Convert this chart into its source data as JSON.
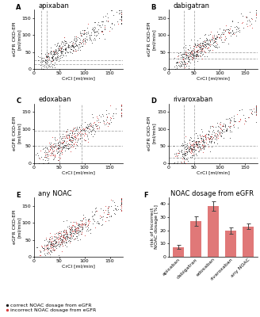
{
  "panels": [
    "A",
    "B",
    "C",
    "D",
    "E",
    "F"
  ],
  "titles": [
    "apixaban",
    "dabigatran",
    "edoxaban",
    "rivaroxaban",
    "any NOAC",
    "NOAC dosage from eGFR"
  ],
  "xlabel": "CrCl [ml/min]",
  "ylabel": "eGFR CKD-EPI\n[ml/min]",
  "xlim": [
    0,
    175
  ],
  "ylim": [
    0,
    175
  ],
  "xticks": [
    0,
    50,
    100,
    150
  ],
  "yticks": [
    0,
    50,
    100,
    150
  ],
  "correct_color": "#1a1a1a",
  "incorrect_color": "#d94040",
  "bar_color": "#e07878",
  "bar_categories": [
    "apixaban",
    "dabigatran",
    "edoxaban",
    "rivaroxaban",
    "any NOAC"
  ],
  "bar_values": [
    7.5,
    27.0,
    38.5,
    20.0,
    23.0
  ],
  "bar_errors": [
    1.5,
    3.5,
    3.5,
    2.5,
    2.0
  ],
  "bar_ylabel": "risk of incorrect\nNOAC dosage [%]",
  "bar_ylim": [
    0,
    45
  ],
  "bar_yticks": [
    0,
    10,
    20,
    30,
    40
  ],
  "vlines_apixaban": [
    15,
    25
  ],
  "hlines_apixaban": [
    15,
    25
  ],
  "vlines_dabigatran": [
    30,
    50
  ],
  "hlines_dabigatran": [
    30,
    50
  ],
  "vlines_edoxaban": [
    50,
    95
  ],
  "hlines_edoxaban": [
    50,
    95
  ],
  "vlines_rivaroxaban": [
    30,
    50
  ],
  "hlines_rivaroxaban": [
    15,
    50
  ],
  "background_color": "#ffffff",
  "dashed_color": "#aaaaaa",
  "panel_label_fontsize": 6,
  "title_fontsize": 6,
  "tick_fontsize": 4.5,
  "label_fontsize": 4.5,
  "legend_fontsize": 4.5
}
